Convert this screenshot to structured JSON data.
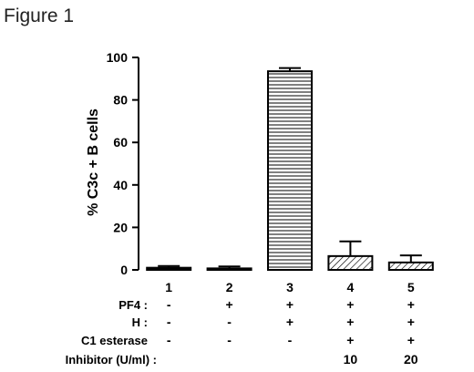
{
  "figure_title": "Figure 1",
  "chart_data": {
    "type": "bar",
    "categories": [
      "1",
      "2",
      "3",
      "4",
      "5"
    ],
    "values": [
      1,
      0.7,
      93.5,
      6.5,
      3.5
    ],
    "error_upper": [
      1.8,
      1.6,
      95.0,
      13.4,
      6.8
    ],
    "patterns": [
      "solid",
      "solid",
      "horizontal",
      "diagonal",
      "diagonal"
    ],
    "ylabel": "% C3c + B cells",
    "ylim": [
      0,
      100
    ],
    "yticks": [
      0,
      20,
      40,
      60,
      80,
      100
    ],
    "grid": false,
    "conditions": [
      {
        "label": "PF4 :",
        "cells": [
          "-",
          "+",
          "+",
          "+",
          "+"
        ]
      },
      {
        "label": "H :",
        "cells": [
          "-",
          "-",
          "+",
          "+",
          "+"
        ]
      },
      {
        "label": "C1 esterase",
        "cells": [
          "-",
          "-",
          "-",
          "+",
          "+"
        ]
      },
      {
        "label": "Inhibitor (U/ml)  :",
        "cells": [
          "",
          "",
          "",
          "10",
          "20"
        ]
      }
    ]
  }
}
